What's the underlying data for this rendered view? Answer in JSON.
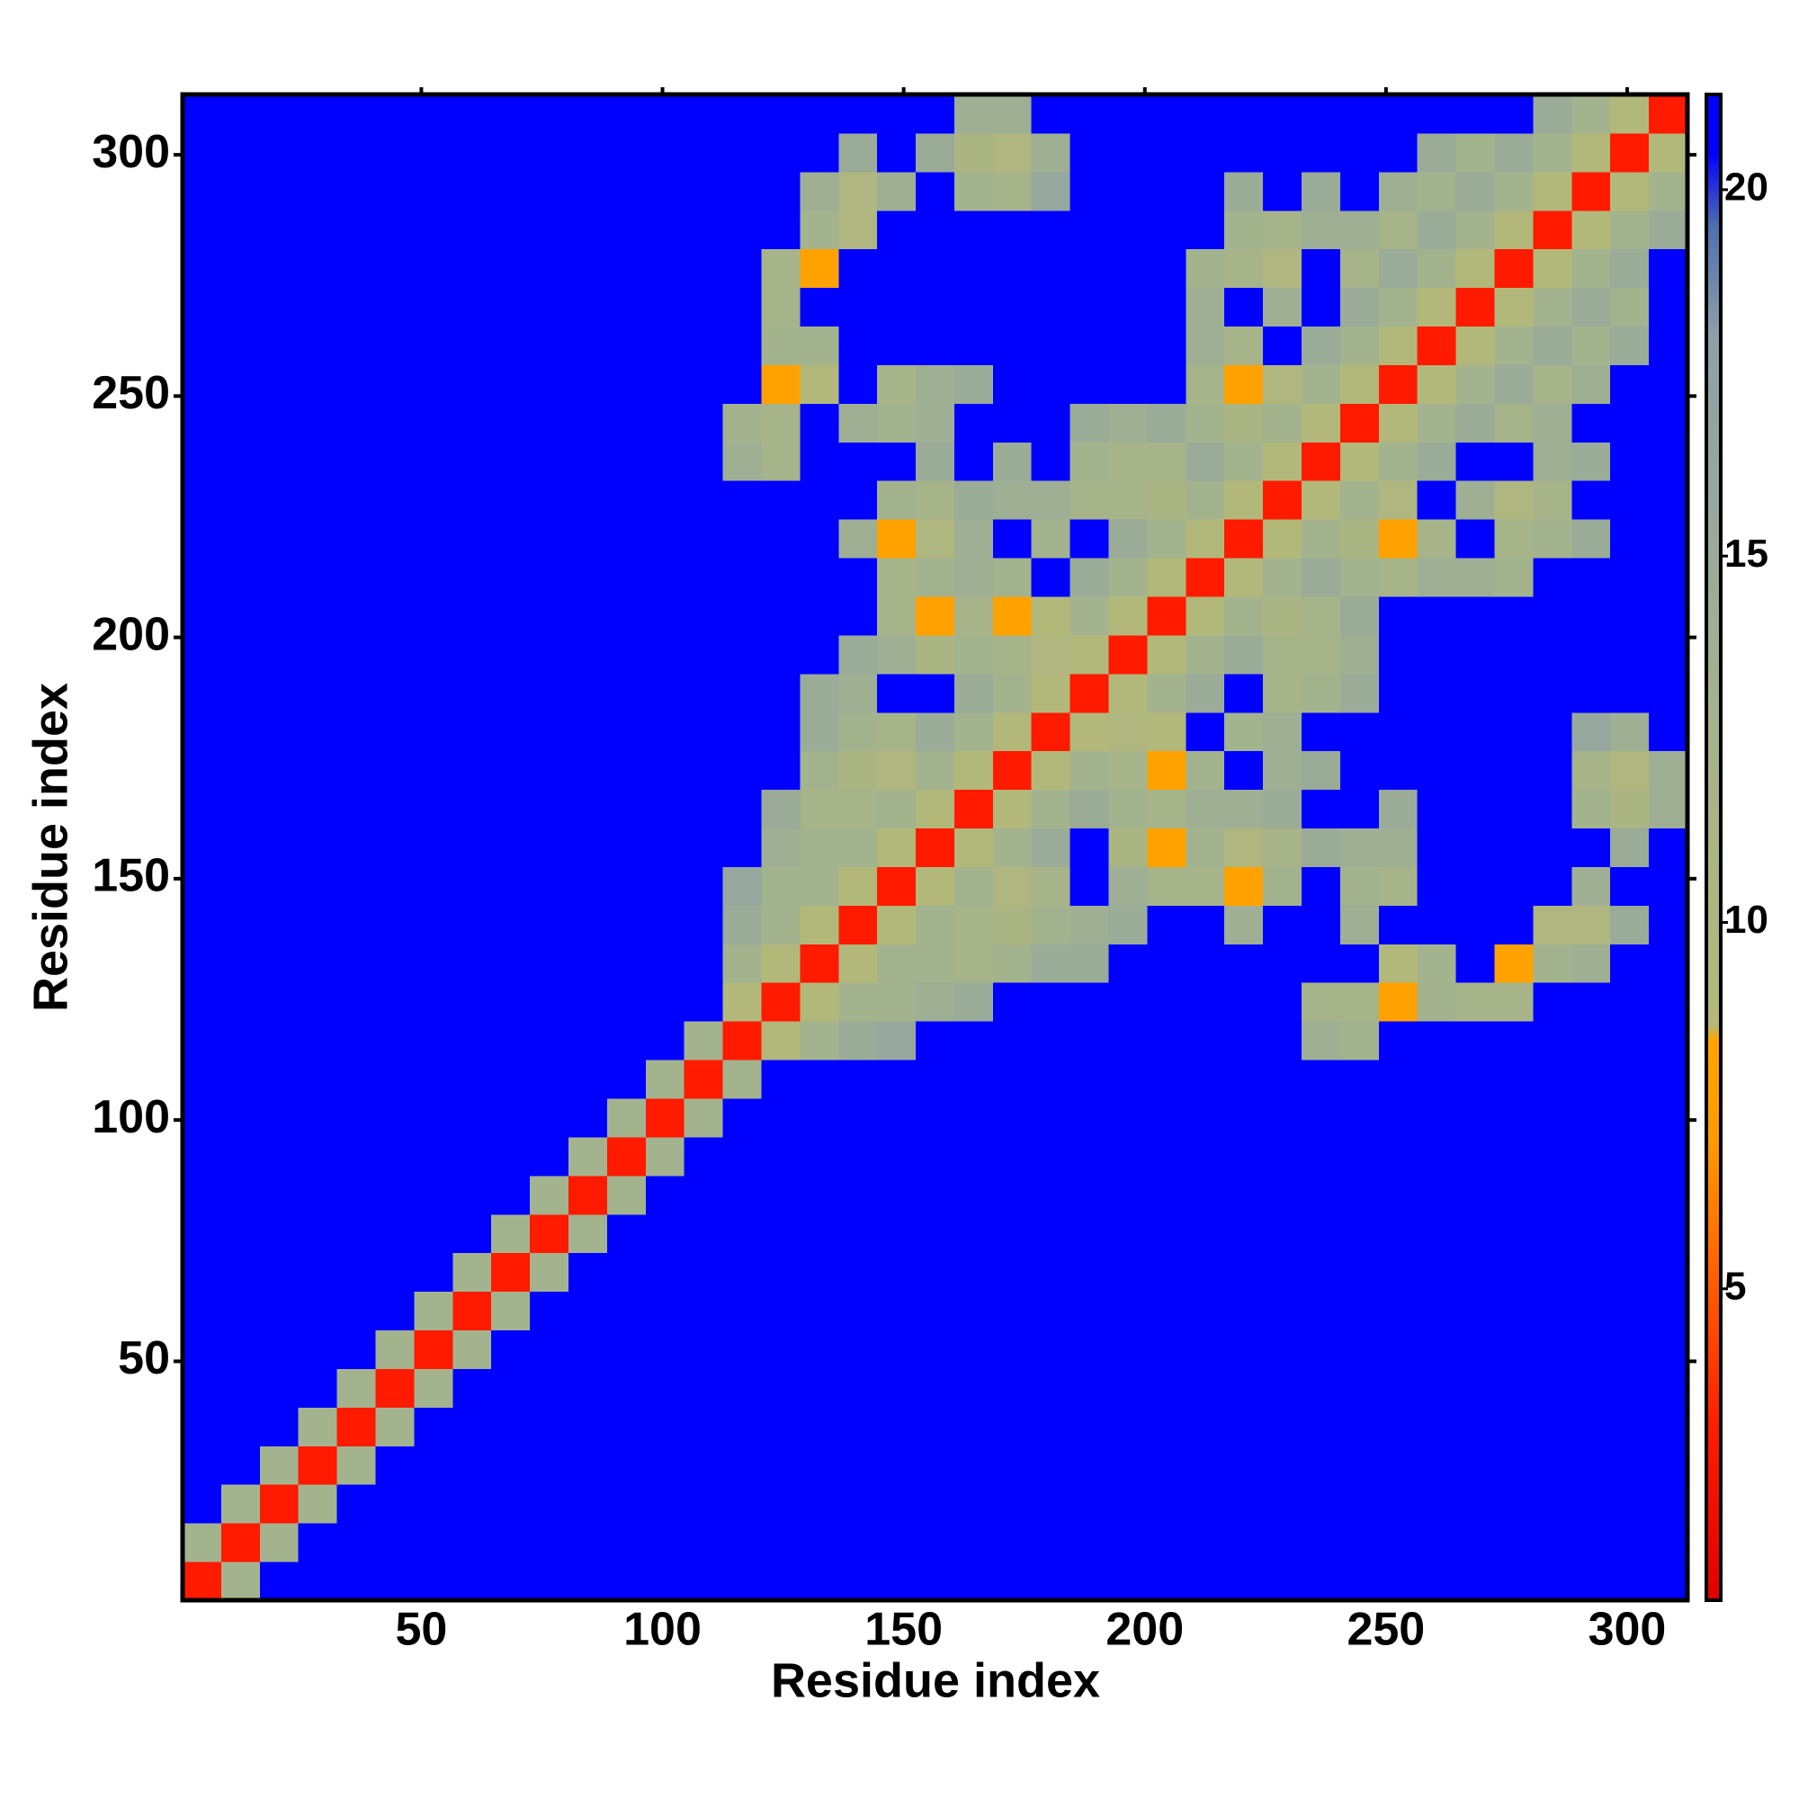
{
  "chart_data": {
    "type": "heatmap",
    "x_label": "Residue index",
    "y_label": "Residue index",
    "bins": [
      0.5,
      8.5,
      16.5,
      24.5,
      32.5,
      40.5,
      48.5,
      56.5,
      64.5,
      72.5,
      80.5,
      88.5,
      96.5,
      104.5,
      112.5,
      120.5,
      128.5,
      136.5,
      144.5,
      152.5,
      160.5,
      168.5,
      176.5,
      184.5,
      192.5,
      200.5,
      208.5,
      216.5,
      224.5,
      232.5,
      240.5,
      248.5,
      256.5,
      264.5,
      272.5,
      280.5,
      288.5,
      296.5,
      304.5,
      312.5
    ],
    "values": [
      [
        3
      ],
      [
        13,
        3
      ],
      [
        21,
        13,
        3
      ],
      [
        21,
        21,
        13,
        3
      ],
      [
        21,
        21,
        21,
        13,
        3
      ],
      [
        21,
        21,
        21,
        21,
        13,
        3
      ],
      [
        21,
        21,
        21,
        21,
        21,
        13,
        3
      ],
      [
        21,
        21,
        21,
        21,
        21,
        21,
        13,
        3
      ],
      [
        21,
        21,
        21,
        21,
        21,
        21,
        21,
        13,
        3
      ],
      [
        21,
        21,
        21,
        21,
        21,
        21,
        21,
        21,
        13,
        3
      ],
      [
        21,
        21,
        21,
        21,
        21,
        21,
        21,
        21,
        21,
        13,
        3
      ],
      [
        21,
        21,
        21,
        21,
        21,
        21,
        21,
        21,
        21,
        21,
        13,
        3
      ],
      [
        21,
        21,
        21,
        21,
        21,
        21,
        21,
        21,
        21,
        21,
        21,
        13,
        3
      ],
      [
        21,
        21,
        21,
        21,
        21,
        21,
        21,
        21,
        21,
        21,
        21,
        21,
        13,
        3
      ],
      [
        21,
        21,
        21,
        21,
        21,
        21,
        21,
        21,
        21,
        21,
        21,
        21,
        21,
        13,
        3
      ],
      [
        21,
        21,
        21,
        21,
        21,
        21,
        21,
        21,
        21,
        21,
        21,
        21,
        21,
        21,
        9,
        3
      ],
      [
        21,
        21,
        21,
        21,
        21,
        21,
        21,
        21,
        21,
        21,
        21,
        21,
        21,
        21,
        13,
        9,
        3
      ],
      [
        21,
        21,
        21,
        21,
        21,
        21,
        21,
        21,
        21,
        21,
        21,
        21,
        21,
        21,
        15,
        13,
        9,
        3
      ],
      [
        21,
        21,
        21,
        21,
        21,
        21,
        21,
        21,
        21,
        21,
        21,
        21,
        21,
        21,
        16,
        13,
        13,
        9,
        3
      ],
      [
        21,
        21,
        21,
        21,
        21,
        21,
        21,
        21,
        21,
        21,
        21,
        21,
        21,
        21,
        21,
        14,
        13,
        13,
        9,
        3
      ],
      [
        21,
        21,
        21,
        21,
        21,
        21,
        21,
        21,
        21,
        21,
        21,
        21,
        21,
        21,
        21,
        15,
        12,
        12,
        13,
        9,
        3
      ],
      [
        21,
        21,
        21,
        21,
        21,
        21,
        21,
        21,
        21,
        21,
        21,
        21,
        21,
        21,
        21,
        21,
        13,
        11,
        10,
        13,
        9,
        3
      ],
      [
        21,
        21,
        21,
        21,
        21,
        21,
        21,
        21,
        21,
        21,
        21,
        21,
        21,
        21,
        21,
        21,
        15,
        13,
        12,
        15,
        13,
        9,
        3
      ],
      [
        21,
        21,
        21,
        21,
        21,
        21,
        21,
        21,
        21,
        21,
        21,
        21,
        21,
        21,
        21,
        21,
        15,
        14,
        21,
        21,
        15,
        13,
        9,
        3
      ],
      [
        21,
        21,
        21,
        21,
        21,
        21,
        21,
        21,
        21,
        21,
        21,
        21,
        21,
        21,
        21,
        21,
        21,
        15,
        14,
        11,
        13,
        12,
        10,
        9,
        3
      ],
      [
        21,
        21,
        21,
        21,
        21,
        21,
        21,
        21,
        21,
        21,
        21,
        21,
        21,
        21,
        21,
        21,
        21,
        21,
        12,
        8,
        12,
        8,
        9,
        13,
        9,
        3
      ],
      [
        21,
        21,
        21,
        21,
        21,
        21,
        21,
        21,
        21,
        21,
        21,
        21,
        21,
        21,
        21,
        21,
        21,
        21,
        12,
        13,
        14,
        13,
        21,
        15,
        13,
        9,
        3
      ],
      [
        21,
        21,
        21,
        21,
        21,
        21,
        21,
        21,
        21,
        21,
        21,
        21,
        21,
        21,
        21,
        21,
        21,
        14,
        8,
        10,
        14,
        21,
        13,
        21,
        15,
        13,
        9,
        3
      ],
      [
        21,
        21,
        21,
        21,
        21,
        21,
        21,
        21,
        21,
        21,
        21,
        21,
        21,
        21,
        21,
        21,
        21,
        21,
        13,
        12,
        15,
        14,
        14,
        12,
        12,
        11,
        13,
        9,
        3
      ],
      [
        21,
        21,
        21,
        21,
        21,
        21,
        21,
        21,
        21,
        21,
        21,
        21,
        21,
        21,
        14,
        12,
        21,
        21,
        21,
        15,
        21,
        15,
        21,
        13,
        12,
        12,
        15,
        13,
        9,
        3
      ],
      [
        21,
        21,
        21,
        21,
        21,
        21,
        21,
        21,
        21,
        21,
        21,
        21,
        21,
        21,
        13,
        12,
        21,
        14,
        13,
        14,
        21,
        21,
        21,
        15,
        14,
        15,
        13,
        11,
        13,
        9,
        3
      ],
      [
        21,
        21,
        21,
        21,
        21,
        21,
        21,
        21,
        21,
        21,
        21,
        21,
        21,
        21,
        21,
        8,
        9,
        21,
        12,
        14,
        15,
        21,
        21,
        21,
        21,
        21,
        12,
        8,
        10,
        13,
        9,
        3
      ],
      [
        21,
        21,
        21,
        21,
        21,
        21,
        21,
        21,
        21,
        21,
        21,
        21,
        21,
        21,
        21,
        13,
        13,
        21,
        21,
        21,
        21,
        21,
        21,
        21,
        21,
        21,
        14,
        12,
        21,
        15,
        13,
        9,
        3
      ],
      [
        21,
        21,
        21,
        21,
        21,
        21,
        21,
        21,
        21,
        21,
        21,
        21,
        21,
        21,
        21,
        12,
        21,
        21,
        21,
        21,
        21,
        21,
        21,
        21,
        21,
        21,
        14,
        21,
        14,
        21,
        15,
        13,
        9,
        3
      ],
      [
        21,
        21,
        21,
        21,
        21,
        21,
        21,
        21,
        21,
        21,
        21,
        21,
        21,
        21,
        21,
        12,
        8,
        21,
        21,
        21,
        21,
        21,
        21,
        21,
        21,
        21,
        13,
        12,
        10,
        21,
        12,
        15,
        13,
        9,
        3
      ],
      [
        21,
        21,
        21,
        21,
        21,
        21,
        21,
        21,
        21,
        21,
        21,
        21,
        21,
        21,
        21,
        21,
        13,
        10,
        21,
        21,
        21,
        21,
        21,
        21,
        21,
        21,
        21,
        13,
        12,
        14,
        14,
        12,
        15,
        13,
        9,
        3
      ],
      [
        21,
        21,
        21,
        21,
        21,
        21,
        21,
        21,
        21,
        21,
        21,
        21,
        21,
        21,
        21,
        21,
        14,
        10,
        14,
        21,
        13,
        12,
        16,
        21,
        21,
        21,
        21,
        15,
        21,
        15,
        21,
        14,
        13,
        15,
        13,
        9,
        3
      ],
      [
        21,
        21,
        21,
        21,
        21,
        21,
        21,
        21,
        21,
        21,
        21,
        21,
        21,
        21,
        21,
        21,
        21,
        15,
        21,
        15,
        11,
        10,
        14,
        21,
        21,
        21,
        21,
        21,
        21,
        21,
        21,
        21,
        15,
        13,
        15,
        13,
        9,
        3
      ],
      [
        21,
        21,
        21,
        21,
        21,
        21,
        21,
        21,
        21,
        21,
        21,
        21,
        21,
        21,
        21,
        21,
        21,
        21,
        21,
        21,
        14,
        14,
        21,
        21,
        21,
        21,
        21,
        21,
        21,
        21,
        21,
        21,
        21,
        21,
        21,
        15,
        13,
        9,
        3
      ]
    ],
    "xlim": [
      0.5,
      312.5
    ],
    "ylim": [
      0.5,
      312.5
    ],
    "xticks": [
      50,
      100,
      150,
      200,
      250,
      300
    ],
    "yticks": [
      50,
      100,
      150,
      200,
      250,
      300
    ],
    "zlim": [
      0.75,
      21.3
    ],
    "zticks": [
      5,
      10,
      15,
      20
    ],
    "colorscale": [
      {
        "value": 0.75,
        "color": "#e00000"
      },
      {
        "value": 3,
        "color": "#ff1a00"
      },
      {
        "value": 5,
        "color": "#ff5a00"
      },
      {
        "value": 7,
        "color": "#ff9a00"
      },
      {
        "value": 8.4,
        "color": "#ffa500"
      },
      {
        "value": 8.6,
        "color": "#b4b878"
      },
      {
        "value": 13,
        "color": "#a3b38e"
      },
      {
        "value": 18,
        "color": "#8da0a8"
      },
      {
        "value": 19.5,
        "color": "#4e6fb0"
      },
      {
        "value": 20.5,
        "color": "#0000ff"
      },
      {
        "value": 21.3,
        "color": "#0000ff"
      }
    ]
  }
}
